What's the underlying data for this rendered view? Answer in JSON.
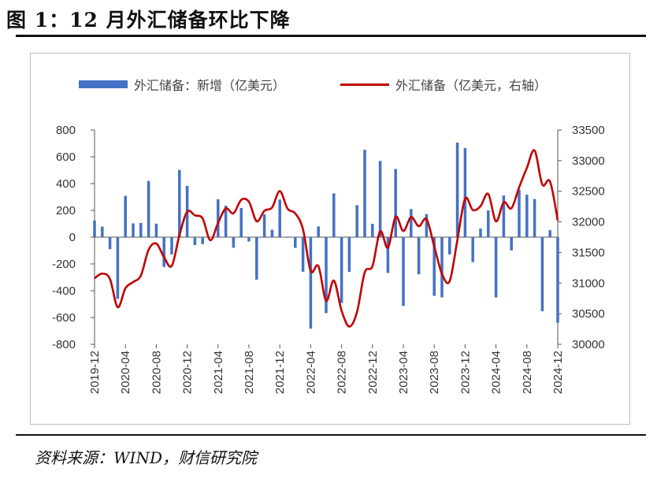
{
  "figure": {
    "title": "图 1：12 月外汇储备环比下降",
    "source": "资料来源：WIND，财信研究院"
  },
  "colors": {
    "bars": "#4472c4",
    "line": "#c00000"
  },
  "chart_data": {
    "type": "bar+line",
    "legend_position": "top",
    "grid": false,
    "x_tick_labels": [
      "2019-12",
      "2020-04",
      "2020-08",
      "2020-12",
      "2021-04",
      "2021-08",
      "2021-12",
      "2022-04",
      "2022-08",
      "2022-12",
      "2023-04",
      "2023-08",
      "2023-12",
      "2024-04",
      "2024-08",
      "2024-12"
    ],
    "x": [
      "2019-12",
      "2020-01",
      "2020-02",
      "2020-03",
      "2020-04",
      "2020-05",
      "2020-06",
      "2020-07",
      "2020-08",
      "2020-09",
      "2020-10",
      "2020-11",
      "2020-12",
      "2021-01",
      "2021-02",
      "2021-03",
      "2021-04",
      "2021-05",
      "2021-06",
      "2021-07",
      "2021-08",
      "2021-09",
      "2021-10",
      "2021-11",
      "2021-12",
      "2022-01",
      "2022-02",
      "2022-03",
      "2022-04",
      "2022-05",
      "2022-06",
      "2022-07",
      "2022-08",
      "2022-09",
      "2022-10",
      "2022-11",
      "2022-12",
      "2023-01",
      "2023-02",
      "2023-03",
      "2023-04",
      "2023-05",
      "2023-06",
      "2023-07",
      "2023-08",
      "2023-09",
      "2023-10",
      "2023-11",
      "2023-12",
      "2024-01",
      "2024-02",
      "2024-03",
      "2024-04",
      "2024-05",
      "2024-06",
      "2024-07",
      "2024-08",
      "2024-09",
      "2024-10",
      "2024-11",
      "2024-12"
    ],
    "series": [
      {
        "name": "外汇储备：新增（亿美元）",
        "type": "bar",
        "axis": "left",
        "values": [
          124,
          79,
          -90,
          -461,
          309,
          103,
          106,
          420,
          101,
          -222,
          -129,
          502,
          383,
          -59,
          -52,
          -2,
          283,
          235,
          -79,
          218,
          -32,
          -317,
          170,
          55,
          281,
          -5,
          -80,
          -258,
          -683,
          80,
          -567,
          327,
          -492,
          -259,
          239,
          652,
          100,
          569,
          -267,
          509,
          -513,
          210,
          -277,
          172,
          -438,
          -450,
          -129,
          706,
          665,
          -186,
          64,
          200,
          -450,
          311,
          -99,
          354,
          317,
          285,
          -553,
          52,
          -639
        ]
      },
      {
        "name": "外汇储备（亿美元，右轴）",
        "type": "line",
        "axis": "right",
        "values": [
          31079,
          31155,
          31065,
          30606,
          30915,
          31017,
          31123,
          31543,
          31646,
          31424,
          31280,
          31785,
          32165,
          32107,
          32055,
          31700,
          31983,
          32218,
          32140,
          32359,
          32327,
          32010,
          32180,
          32235,
          32502,
          32216,
          32138,
          31880,
          31197,
          31278,
          30711,
          31041,
          30549,
          30290,
          30529,
          31175,
          31277,
          31845,
          31579,
          32083,
          31851,
          32076,
          31929,
          32043,
          31601,
          31151,
          31032,
          31703,
          32380,
          32193,
          32257,
          32457,
          32008,
          32320,
          32222,
          32565,
          32881,
          33165,
          32610,
          32659,
          32024
        ]
      }
    ],
    "y_left": {
      "range": [
        -800,
        800
      ],
      "ticks": [
        -800,
        -600,
        -400,
        -200,
        0,
        200,
        400,
        600,
        800
      ]
    },
    "y_right": {
      "range": [
        30000,
        33500
      ],
      "ticks": [
        30000,
        30500,
        31000,
        31500,
        32000,
        32500,
        33000,
        33500
      ]
    }
  }
}
